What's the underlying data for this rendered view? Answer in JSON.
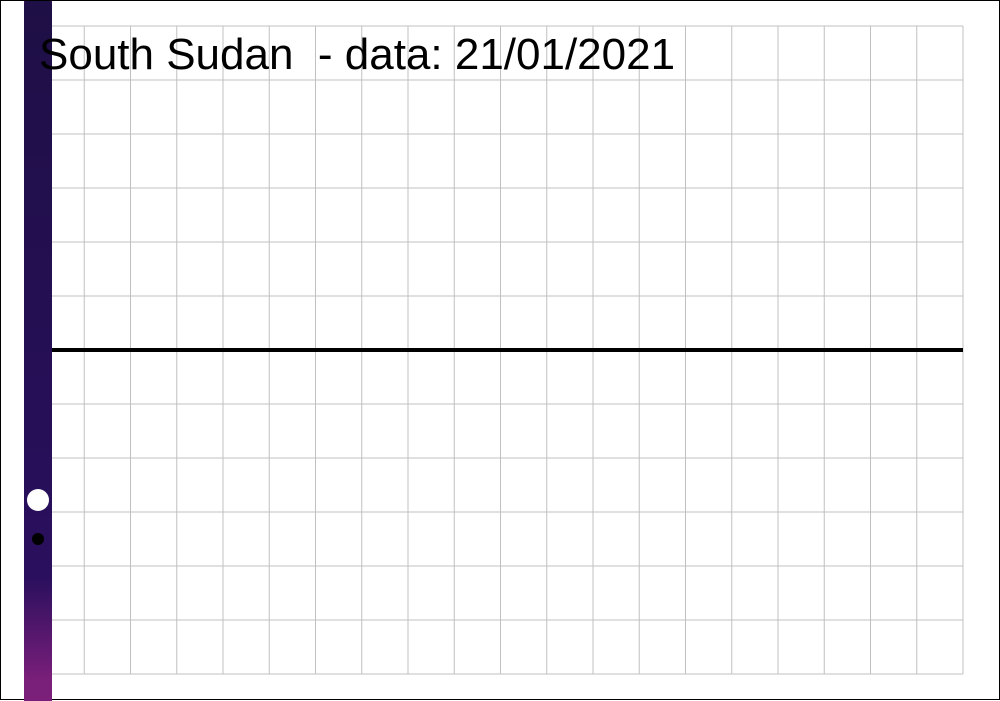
{
  "title": "South Sudan  - data: 21/01/2021",
  "chart_data": {
    "type": "line",
    "title": "South Sudan  - data: 21/01/2021",
    "xlabel": "",
    "ylabel": "",
    "grid": true,
    "series": [
      {
        "values": [
          0,
          0
        ]
      }
    ],
    "colors": {
      "background": "#ffffff",
      "grid": "#c0c0c0",
      "line": "#000000",
      "bar_top": "#1e0f45",
      "bar_mid": "#2a0f5e",
      "bar_bottom": "#7a1f7a",
      "marker_large": "#ffffff",
      "marker_small": "#000000"
    }
  }
}
